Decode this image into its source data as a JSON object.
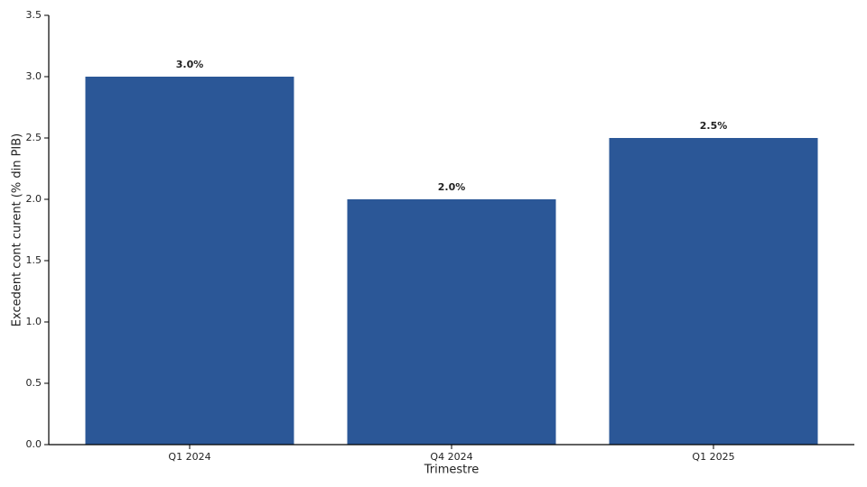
{
  "chart_data": {
    "type": "bar",
    "x_label": "Trimestre",
    "y_label": "Excedent cont curent (% din PIB)",
    "categories": [
      "Q1 2024",
      "Q4 2024",
      "Q1 2025"
    ],
    "values": [
      3.0,
      2.0,
      2.5
    ],
    "value_labels": [
      "3.0%",
      "2.0%",
      "2.5%"
    ],
    "color": "#2b5797",
    "ylim": [
      0,
      3.5
    ],
    "yticks": [
      {
        "value": 0,
        "label": "0.0"
      },
      0.5,
      {
        "value": 1,
        "label": "1.0"
      },
      1.5,
      {
        "value": 2,
        "label": "2.0"
      },
      2.5,
      {
        "value": 3,
        "label": "3.0"
      },
      3.5
    ],
    "grid": false
  }
}
